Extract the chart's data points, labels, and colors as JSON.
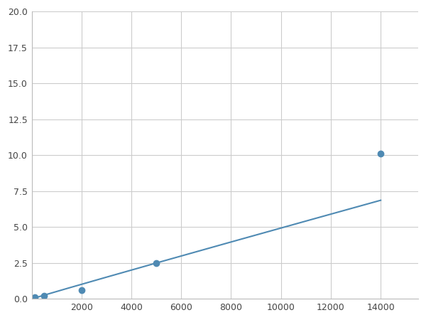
{
  "x_points": [
    125,
    500,
    2000,
    5000,
    14000
  ],
  "y_points": [
    0.1,
    0.2,
    0.6,
    2.5,
    10.1
  ],
  "line_color": "#4f8ab3",
  "marker_color": "#4f8ab3",
  "marker_size": 6,
  "xlim": [
    0,
    15500
  ],
  "ylim": [
    0,
    20.0
  ],
  "xticks": [
    0,
    2000,
    4000,
    6000,
    8000,
    10000,
    12000,
    14000
  ],
  "yticks": [
    0.0,
    2.5,
    5.0,
    7.5,
    10.0,
    12.5,
    15.0,
    17.5,
    20.0
  ],
  "grid_color": "#cccccc",
  "background_color": "#ffffff",
  "linewidth": 1.5
}
